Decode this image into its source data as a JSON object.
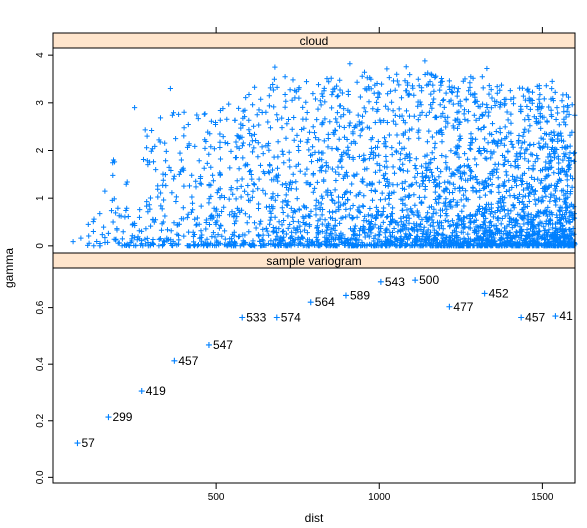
{
  "chart_data": [
    {
      "type": "scatter",
      "panel": "cloud",
      "strip_title": "cloud",
      "xlabel": "dist",
      "ylabel": "gamma",
      "xlim": [
        0,
        1600
      ],
      "ylim": [
        -0.15,
        4.15
      ],
      "yticks": [
        0,
        1,
        2,
        3,
        4
      ],
      "xticks": [
        500,
        1000,
        1500
      ],
      "marker": "+",
      "description_of_density": "dense cloud of semivariance pairs; upper envelope rises from ~0.7 near dist 50 to ~3.5-3.9 beyond dist 600; most points below 1.5",
      "envelope": {
        "x": [
          40,
          80,
          120,
          200,
          300,
          400,
          500,
          600,
          700,
          800,
          900,
          1000,
          1100,
          1200,
          1300,
          1400,
          1500,
          1600
        ],
        "ymax": [
          0.3,
          0.8,
          1.4,
          2.2,
          2.6,
          2.9,
          3.0,
          3.3,
          3.6,
          3.5,
          3.6,
          3.7,
          3.8,
          3.5,
          3.6,
          3.3,
          3.4,
          3.2
        ]
      },
      "highlight_points": {
        "x": [
          680,
          910,
          1140,
          1330,
          1530,
          360,
          250
        ],
        "y": [
          3.75,
          3.82,
          3.88,
          3.72,
          3.45,
          3.3,
          2.9
        ]
      },
      "n_points": 3200
    },
    {
      "type": "scatter",
      "panel": "sample variogram",
      "strip_title": "sample variogram",
      "xlabel": "dist",
      "ylabel": "gamma",
      "xlim": [
        0,
        1600
      ],
      "ylim": [
        -0.02,
        0.74
      ],
      "yticks": [
        0.0,
        0.2,
        0.4,
        0.6
      ],
      "ytick_labels": [
        "0.0",
        "0.2",
        "0.4",
        "0.6"
      ],
      "xticks": [
        500,
        1000,
        1500
      ],
      "marker": "+",
      "points": [
        {
          "x": 75,
          "y": 0.121,
          "label": "57"
        },
        {
          "x": 170,
          "y": 0.213,
          "label": "299"
        },
        {
          "x": 272,
          "y": 0.305,
          "label": "419"
        },
        {
          "x": 372,
          "y": 0.412,
          "label": "457"
        },
        {
          "x": 478,
          "y": 0.468,
          "label": "547"
        },
        {
          "x": 580,
          "y": 0.565,
          "label": "533"
        },
        {
          "x": 686,
          "y": 0.565,
          "label": "574"
        },
        {
          "x": 790,
          "y": 0.619,
          "label": "564"
        },
        {
          "x": 898,
          "y": 0.643,
          "label": "589"
        },
        {
          "x": 1005,
          "y": 0.691,
          "label": "543"
        },
        {
          "x": 1110,
          "y": 0.697,
          "label": "500"
        },
        {
          "x": 1215,
          "y": 0.603,
          "label": "477"
        },
        {
          "x": 1323,
          "y": 0.65,
          "label": "452"
        },
        {
          "x": 1435,
          "y": 0.565,
          "label": "457"
        },
        {
          "x": 1540,
          "y": 0.57,
          "label": "41"
        }
      ]
    }
  ],
  "colors": {
    "points": "#0080ff",
    "strip_bg": "#ffe5cc",
    "frame": "#000000",
    "background": "#ffffff"
  },
  "axis": {
    "xlabel": "dist",
    "ylabel": "gamma",
    "xtick_labels": [
      "500",
      "1000",
      "1500"
    ],
    "cloud_ytick_labels": [
      "0",
      "1",
      "2",
      "3",
      "4"
    ],
    "variogram_ytick_labels": [
      "0.0",
      "0.2",
      "0.4",
      "0.6"
    ]
  },
  "strips": {
    "cloud": "cloud",
    "variogram": "sample variogram"
  }
}
